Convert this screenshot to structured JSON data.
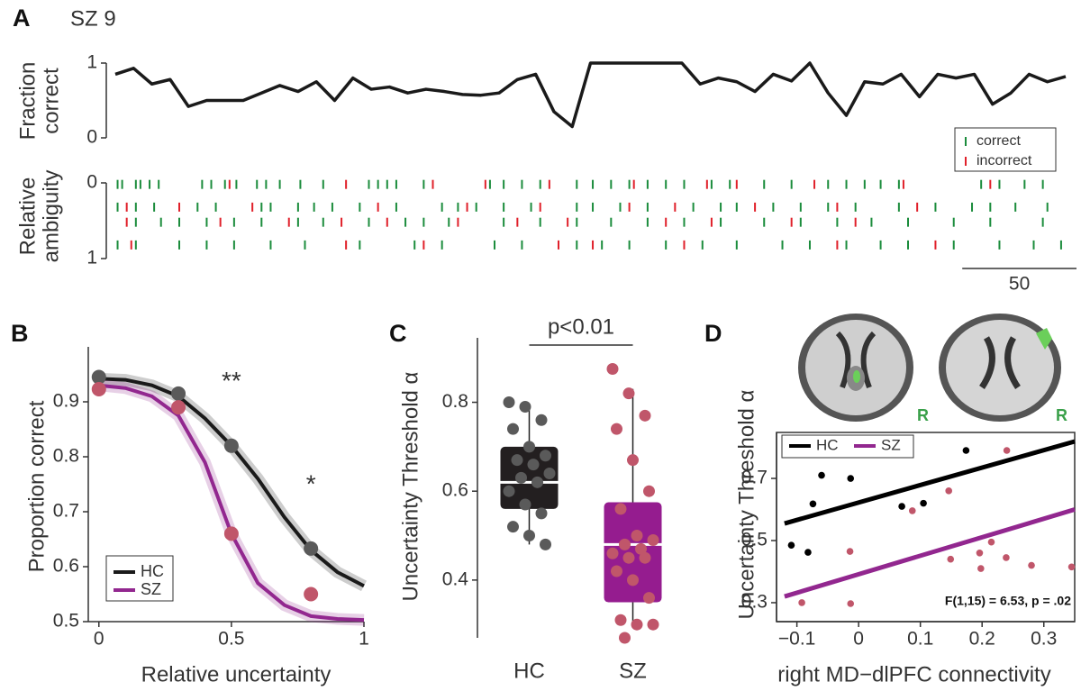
{
  "chart_data": [
    {
      "type": "line",
      "panel": "A",
      "title": "SZ 9",
      "ylabel": [
        "Fraction",
        "correct"
      ],
      "x": [
        0,
        8,
        16,
        24,
        32,
        40,
        48,
        56,
        64,
        72,
        80,
        88,
        96,
        104,
        112,
        120,
        128,
        136,
        144,
        152,
        160,
        168,
        176,
        184,
        192,
        200,
        208,
        216,
        224,
        232,
        240,
        248,
        256,
        264,
        272,
        280,
        288,
        296,
        304,
        312,
        320,
        328,
        336,
        344,
        352,
        360,
        368,
        376,
        384,
        392,
        400,
        408,
        416
      ],
      "values": [
        0.85,
        0.93,
        0.72,
        0.78,
        0.42,
        0.5,
        0.5,
        0.5,
        0.6,
        0.7,
        0.62,
        0.75,
        0.5,
        0.8,
        0.65,
        0.68,
        0.6,
        0.65,
        0.62,
        0.58,
        0.57,
        0.6,
        0.78,
        0.85,
        0.35,
        0.15,
        1,
        1,
        1,
        1,
        1,
        1,
        0.72,
        0.8,
        0.75,
        0.62,
        0.85,
        0.76,
        1,
        0.6,
        0.3,
        0.75,
        0.72,
        0.85,
        0.55,
        0.85,
        0.8,
        0.85,
        0.45,
        0.6,
        0.85,
        0.75,
        0.82
      ],
      "color": "#1a1a1a",
      "xlim": [
        0,
        416
      ],
      "ylim": [
        0,
        1
      ],
      "yticks": [
        0,
        1
      ]
    },
    {
      "type": "raster",
      "ylabel": [
        "Relative",
        "ambiguity"
      ],
      "xlim": [
        0,
        416
      ],
      "ylim": [
        0,
        1
      ],
      "yticks": [
        0,
        1
      ],
      "yinvert": true,
      "scale_bar": 50,
      "series": [
        {
          "name": "correct",
          "color": "#1b8c3c",
          "rows": [
            {
              "y": 0.02,
              "x": [
                1,
                3,
                9,
                11,
                15,
                19,
                38,
                42,
                48,
                53,
                62,
                66,
                72,
                81,
                91,
                111,
                115,
                119,
                123,
                135,
                164,
                170,
                178,
                186,
                202,
                209,
                217,
                225,
                233,
                241,
                249,
                261,
                269,
                284,
                296,
                312,
                320,
                328,
                335,
                343,
                379,
                387,
                398,
                406
              ]
            },
            {
              "y": 0.32,
              "x": [
                1,
                9,
                17,
                36,
                44,
                64,
                68,
                80,
                87,
                95,
                107,
                123,
                143,
                150,
                158,
                170,
                182,
                202,
                209,
                221,
                233,
                253,
                265,
                272,
                288,
                300,
                312,
                324,
                343,
                359,
                375,
                383,
                394,
                408
              ]
            },
            {
              "y": 0.52,
              "x": [
                9,
                20,
                28,
                40,
                52,
                64,
                80,
                91,
                111,
                127,
                135,
                146,
                170,
                186,
                202,
                217,
                233,
                249,
                265,
                284,
                300,
                316,
                331,
                347,
                367,
                383,
                406
              ]
            },
            {
              "y": 0.82,
              "x": [
                1,
                9,
                28,
                40,
                52,
                68,
                83,
                107,
                131,
                143,
                166,
                178,
                202,
                213,
                225,
                241,
                257,
                272,
                292,
                304,
                320,
                335,
                347,
                367,
                387,
                402,
                414
              ]
            }
          ]
        },
        {
          "name": "incorrect",
          "color": "#e0202a",
          "rows": [
            {
              "y": 0.02,
              "x": [
                50,
                101,
                139,
                162,
                190,
                227,
                259,
                272,
                306,
                345,
                383
              ]
            },
            {
              "y": 0.32,
              "x": [
                5,
                28,
                60,
                115,
                154,
                186,
                225,
                245,
                280,
                316,
                351
              ]
            },
            {
              "y": 0.52,
              "x": [
                5,
                46,
                76,
                99,
                119,
                150,
                176,
                198,
                241,
                261,
                296,
                324
              ]
            },
            {
              "y": 0.82,
              "x": [
                7,
                101,
                135,
                194,
                209,
                249,
                316,
                359
              ]
            }
          ]
        }
      ]
    },
    {
      "type": "fit",
      "panel": "B",
      "xlabel": "Relative uncertainty",
      "ylabel": [
        "Proportion correct"
      ],
      "x": [
        0,
        0.1,
        0.2,
        0.3,
        0.4,
        0.5,
        0.6,
        0.7,
        0.8,
        0.9,
        1
      ],
      "point_x": [
        0,
        0.3,
        0.5,
        0.8
      ],
      "series": [
        {
          "name": "HC",
          "color": "#1a1a1a",
          "point_color": "#5a5a5a",
          "values": [
            0.942,
            0.94,
            0.93,
            0.91,
            0.87,
            0.82,
            0.76,
            0.69,
            0.63,
            0.59,
            0.565
          ],
          "point_values": [
            0.945,
            0.915,
            0.82,
            0.633
          ]
        },
        {
          "name": "SZ",
          "color": "#92278f",
          "point_color": "#c0566a",
          "values": [
            0.93,
            0.925,
            0.91,
            0.875,
            0.79,
            0.66,
            0.57,
            0.53,
            0.51,
            0.505,
            0.503
          ],
          "point_values": [
            0.923,
            0.89,
            0.66,
            0.55
          ]
        }
      ],
      "annotations": [
        "**",
        "*"
      ],
      "xlim": [
        -0.04,
        1
      ],
      "ylim": [
        0.5,
        1.0
      ],
      "xticks": [
        0,
        0.5,
        1
      ],
      "yticks": [
        0.5,
        0.6,
        0.7,
        0.8,
        0.9
      ]
    },
    {
      "type": "box",
      "panel": "C",
      "ylabel": [
        "Uncertainty Threshold α"
      ],
      "annotation": "p<0.01",
      "categories": [
        "HC",
        "SZ"
      ],
      "boxes": [
        {
          "color": "#231f20",
          "point_color": "#5a5a5a",
          "whislo": 0.48,
          "q1": 0.56,
          "med": 0.62,
          "q3": 0.7,
          "whishi": 0.79,
          "points": [
            0.8,
            0.79,
            0.76,
            0.74,
            0.7,
            0.68,
            0.67,
            0.66,
            0.64,
            0.63,
            0.62,
            0.6,
            0.57,
            0.55,
            0.52,
            0.5,
            0.48
          ]
        },
        {
          "color": "#951c8f",
          "point_color": "#c0566a",
          "whislo": 0.3,
          "q1": 0.35,
          "med": 0.48,
          "q3": 0.575,
          "whishi": 0.83,
          "points": [
            0.875,
            0.82,
            0.77,
            0.74,
            0.67,
            0.6,
            0.56,
            0.5,
            0.49,
            0.48,
            0.47,
            0.46,
            0.45,
            0.45,
            0.42,
            0.4,
            0.36,
            0.31,
            0.3,
            0.3,
            0.27
          ]
        }
      ],
      "ylim": [
        0.27,
        0.945
      ],
      "yticks": [
        0.4,
        0.6,
        0.8
      ]
    },
    {
      "type": "scatter",
      "panel": "D",
      "xlabel": "right MD−dlPFC connectivity",
      "ylabel": [
        "Uncertainty Threshold α"
      ],
      "annotation": "F(1,15) = 6.53, p = .02",
      "image_labels": [
        "R",
        "R"
      ],
      "series": [
        {
          "name": "HC",
          "color": "#000000",
          "point_color": "#000000",
          "x": [
            -0.109,
            -0.082,
            -0.074,
            -0.06,
            -0.013,
            0.07,
            0.105,
            0.174
          ],
          "values": [
            0.485,
            0.462,
            0.618,
            0.71,
            0.7,
            0.61,
            0.62,
            0.79
          ],
          "fit_x": [
            -0.12,
            0.35
          ],
          "fit_values": [
            0.555,
            0.819
          ]
        },
        {
          "name": "SZ",
          "color": "#92278f",
          "point_color": "#c0566a",
          "x": [
            -0.092,
            -0.013,
            -0.014,
            0.087,
            0.146,
            0.149,
            0.196,
            0.198,
            0.215,
            0.239,
            0.24,
            0.28,
            0.345
          ],
          "values": [
            0.3,
            0.297,
            0.465,
            0.596,
            0.66,
            0.44,
            0.46,
            0.41,
            0.495,
            0.445,
            0.79,
            0.42,
            0.415
          ],
          "fit_x": [
            -0.12,
            0.35
          ],
          "fit_values": [
            0.32,
            0.6
          ]
        }
      ],
      "xlim": [
        -0.133,
        0.35
      ],
      "ylim": [
        0.239,
        0.848
      ],
      "xticks": [
        {
          "value": -0.1,
          "label": "−0.1"
        },
        0,
        0.1,
        0.2,
        0.3
      ],
      "yticks": [
        0.3,
        0.5,
        0.7
      ]
    }
  ]
}
